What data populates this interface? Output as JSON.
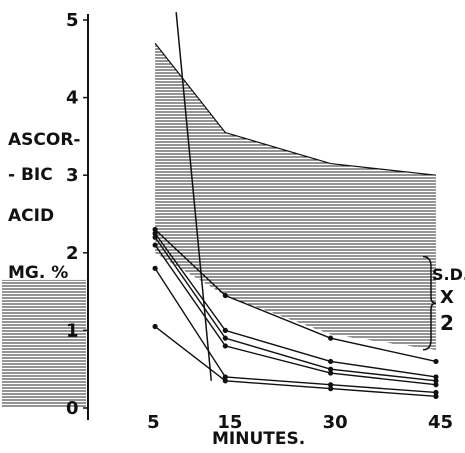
{
  "chart_data": {
    "type": "line",
    "title": "",
    "ylabel_lines": [
      "ASCOR-",
      "- BIC",
      "ACID",
      "MG. %"
    ],
    "xlabel": "MINUTES.",
    "x_ticks": [
      5,
      15,
      30,
      45
    ],
    "y_ticks": [
      0,
      1,
      2,
      3,
      4,
      5
    ],
    "xlim": [
      0,
      47
    ],
    "ylim": [
      0,
      5
    ],
    "grid": false,
    "band_label_lines": [
      "S.D.",
      "X",
      "2"
    ],
    "sd_band": {
      "x": [
        5,
        15,
        30,
        45
      ],
      "upper": [
        4.7,
        3.55,
        3.15,
        3.0
      ],
      "lower": [
        2.0,
        1.45,
        0.95,
        0.75
      ]
    },
    "normal_range_shade": [
      0,
      1.65
    ],
    "steep_line": {
      "x": [
        8,
        13
      ],
      "y": [
        5.1,
        0.35
      ]
    },
    "series": [
      {
        "x": [
          5,
          15,
          30,
          45
        ],
        "values": [
          2.3,
          1.45,
          0.9,
          0.6
        ]
      },
      {
        "x": [
          5,
          15,
          30,
          45
        ],
        "values": [
          2.25,
          1.0,
          0.6,
          0.4
        ]
      },
      {
        "x": [
          5,
          15,
          30,
          45
        ],
        "values": [
          2.2,
          0.9,
          0.5,
          0.35
        ]
      },
      {
        "x": [
          5,
          15,
          30,
          45
        ],
        "values": [
          2.1,
          0.8,
          0.45,
          0.3
        ]
      },
      {
        "x": [
          5,
          15,
          30,
          45
        ],
        "values": [
          1.8,
          0.4,
          0.3,
          0.2
        ]
      },
      {
        "x": [
          5,
          15,
          30,
          45
        ],
        "values": [
          1.05,
          0.35,
          0.25,
          0.15
        ]
      }
    ],
    "colors": {
      "ink": "#111111",
      "paper": "#ffffff"
    }
  }
}
